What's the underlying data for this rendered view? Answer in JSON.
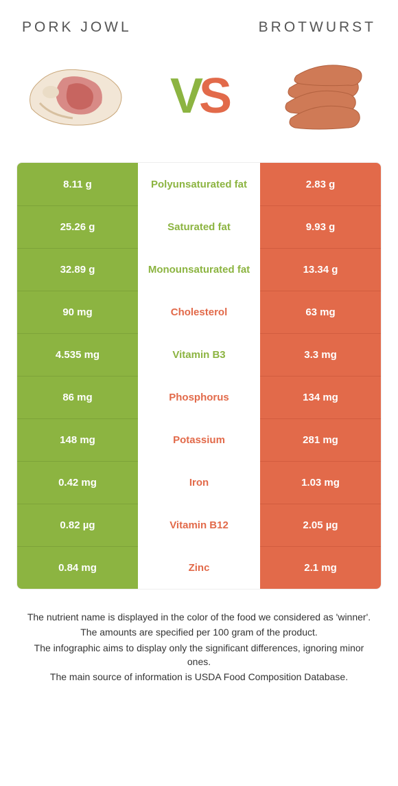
{
  "colors": {
    "green": "#8cb441",
    "green_border": "#7da339",
    "orange": "#e26a4a",
    "orange_border": "#d25d3f",
    "text": "#444444"
  },
  "header": {
    "left_title": "PORK JOWL",
    "right_title": "BROTWURST"
  },
  "vs": {
    "v": "V",
    "s": "S"
  },
  "table": {
    "rows": [
      {
        "nutrient": "Polyunsaturated fat",
        "left": "8.11 g",
        "right": "2.83 g",
        "winner": "left"
      },
      {
        "nutrient": "Saturated fat",
        "left": "25.26 g",
        "right": "9.93 g",
        "winner": "left"
      },
      {
        "nutrient": "Monounsaturated fat",
        "left": "32.89 g",
        "right": "13.34 g",
        "winner": "left"
      },
      {
        "nutrient": "Cholesterol",
        "left": "90 mg",
        "right": "63 mg",
        "winner": "right"
      },
      {
        "nutrient": "Vitamin B3",
        "left": "4.535 mg",
        "right": "3.3 mg",
        "winner": "left"
      },
      {
        "nutrient": "Phosphorus",
        "left": "86 mg",
        "right": "134 mg",
        "winner": "right"
      },
      {
        "nutrient": "Potassium",
        "left": "148 mg",
        "right": "281 mg",
        "winner": "right"
      },
      {
        "nutrient": "Iron",
        "left": "0.42 mg",
        "right": "1.03 mg",
        "winner": "right"
      },
      {
        "nutrient": "Vitamin B12",
        "left": "0.82 µg",
        "right": "2.05 µg",
        "winner": "right"
      },
      {
        "nutrient": "Zinc",
        "left": "0.84 mg",
        "right": "2.1 mg",
        "winner": "right"
      }
    ]
  },
  "notes": {
    "line1": "The nutrient name is displayed in the color of the food we considered as 'winner'.",
    "line2": "The amounts are specified per 100 gram of the product.",
    "line3": "The infographic aims to display only the significant differences, ignoring minor ones.",
    "line4": "The main source of information is USDA Food Composition Database."
  }
}
